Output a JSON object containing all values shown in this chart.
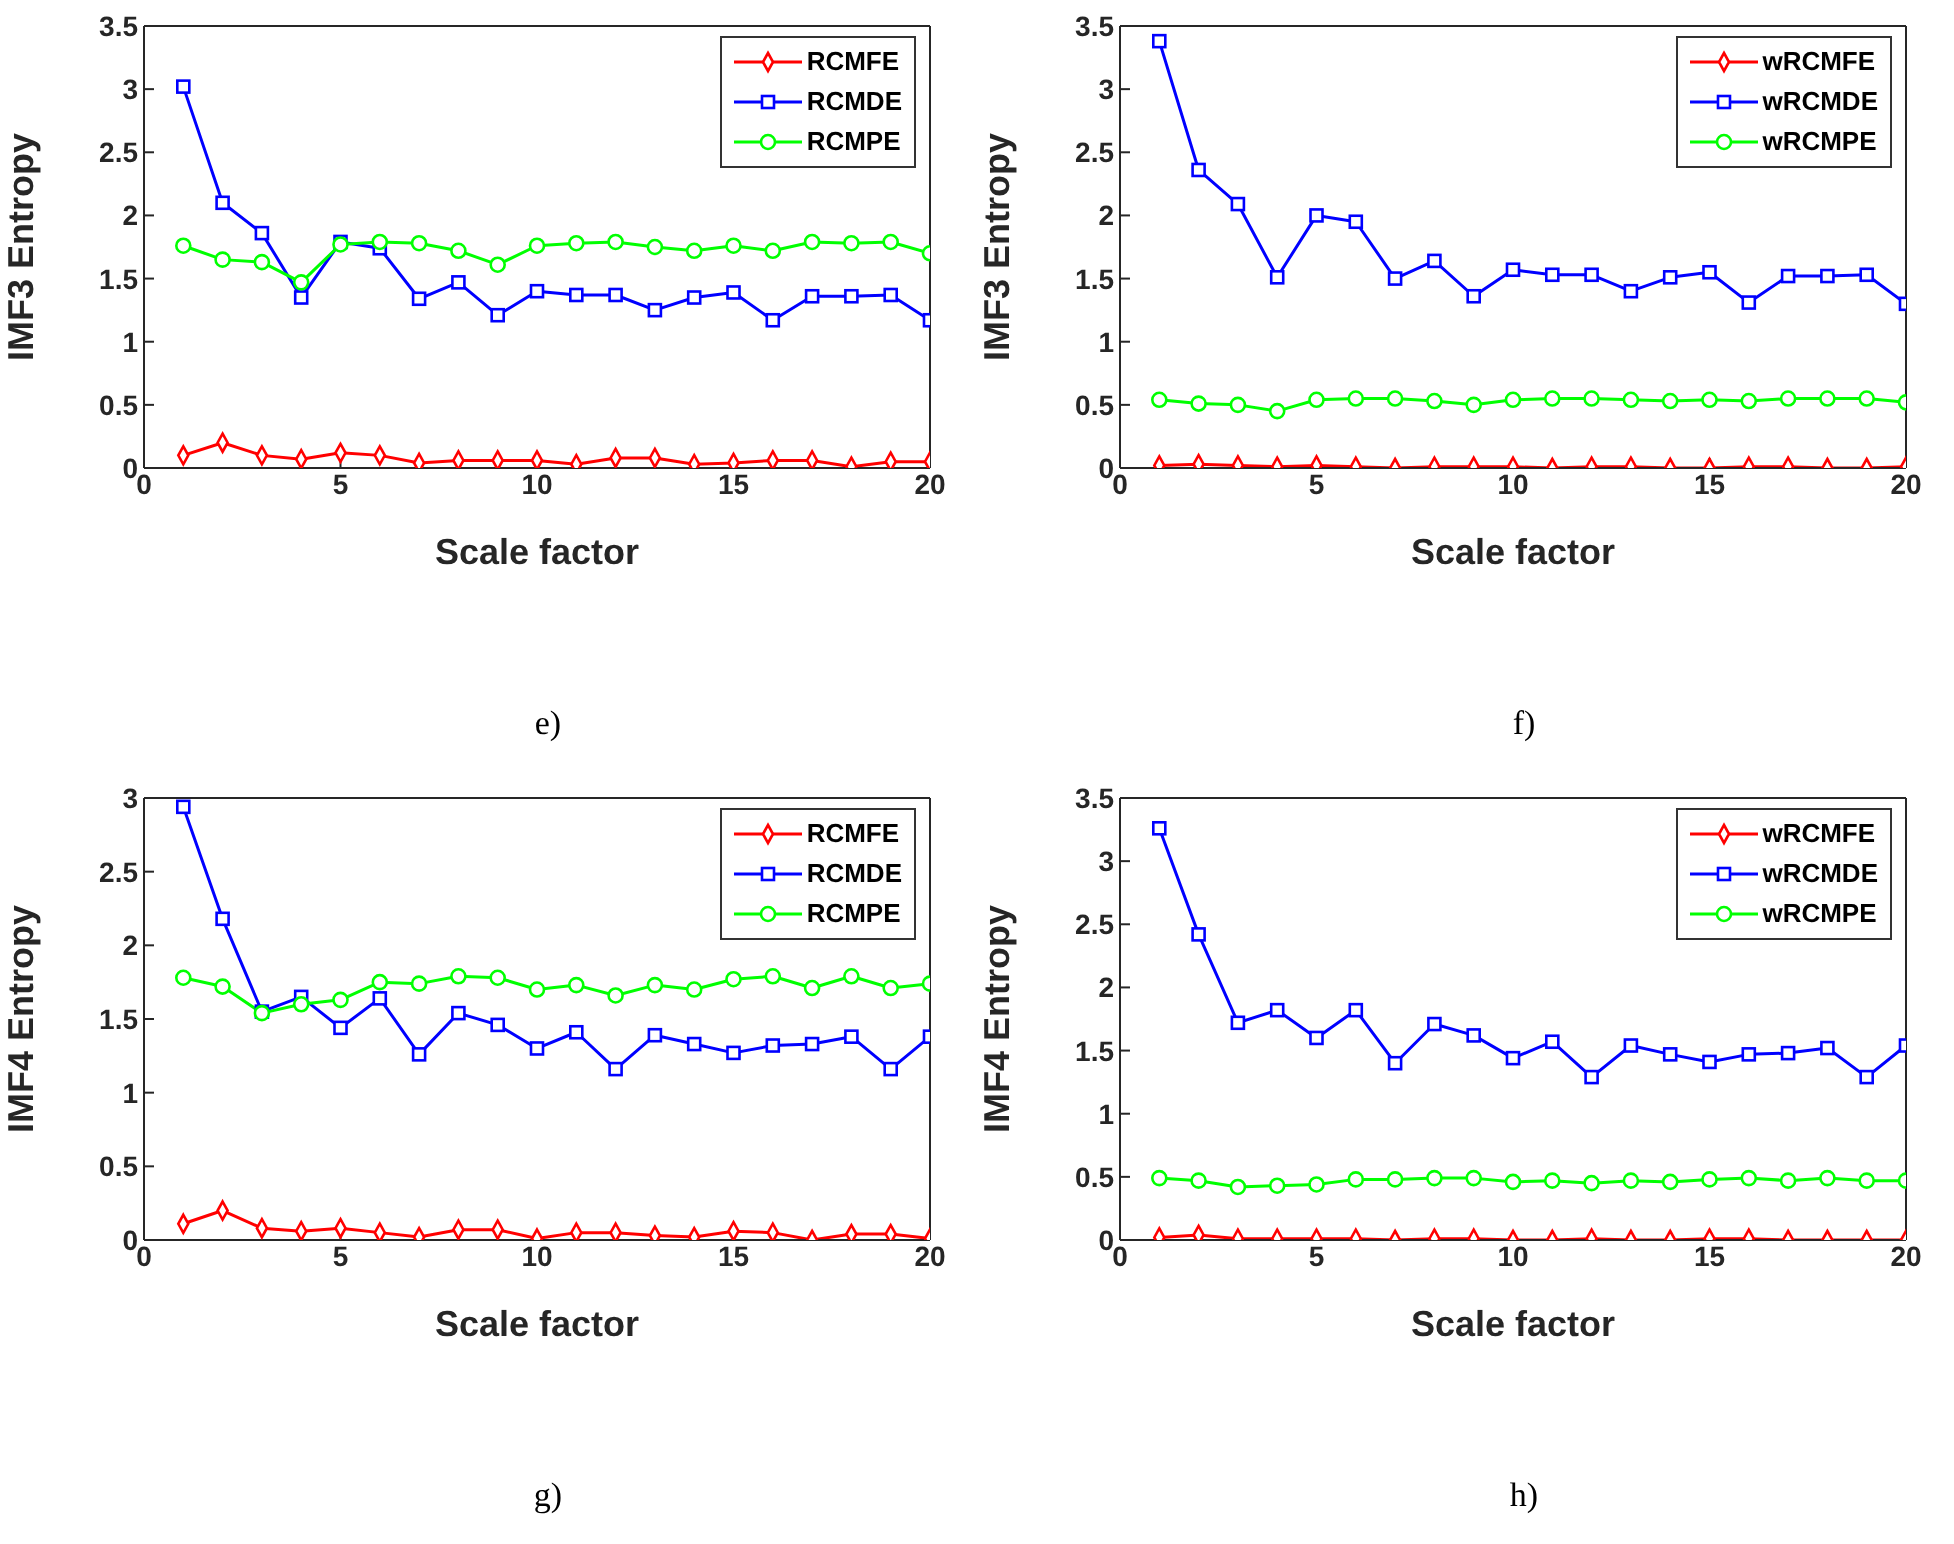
{
  "chart_data": [
    {
      "type": "line",
      "xlabel": "Scale factor",
      "ylabel": "IMF3 Entropy",
      "annotations": [
        "e)"
      ],
      "x": [
        1,
        2,
        3,
        4,
        5,
        6,
        7,
        8,
        9,
        10,
        11,
        12,
        13,
        14,
        15,
        16,
        17,
        18,
        19,
        20
      ],
      "xlim": [
        0,
        20
      ],
      "xticks": [
        0,
        5,
        10,
        15,
        20
      ],
      "ylim": [
        0,
        3.5
      ],
      "yticks": [
        0,
        0.5,
        1,
        1.5,
        2,
        2.5,
        3,
        3.5
      ],
      "legend": "top right",
      "grid": false,
      "line_style": "solid",
      "series": [
        {
          "name": "RCMFE",
          "color": "#ff0000",
          "marker": "diamond",
          "values": [
            0.1,
            0.2,
            0.1,
            0.07,
            0.12,
            0.1,
            0.04,
            0.06,
            0.06,
            0.06,
            0.03,
            0.08,
            0.08,
            0.03,
            0.04,
            0.06,
            0.06,
            0.01,
            0.05,
            0.05
          ]
        },
        {
          "name": "RCMDE",
          "color": "#0000ff",
          "marker": "square",
          "values": [
            3.02,
            2.1,
            1.86,
            1.35,
            1.79,
            1.74,
            1.34,
            1.47,
            1.21,
            1.4,
            1.37,
            1.37,
            1.25,
            1.35,
            1.39,
            1.17,
            1.36,
            1.36,
            1.37,
            1.17
          ]
        },
        {
          "name": "RCMPE",
          "color": "#00ff00",
          "marker": "circle",
          "values": [
            1.76,
            1.65,
            1.63,
            1.47,
            1.77,
            1.79,
            1.78,
            1.72,
            1.61,
            1.76,
            1.78,
            1.79,
            1.75,
            1.72,
            1.76,
            1.72,
            1.79,
            1.78,
            1.79,
            1.7
          ]
        }
      ]
    },
    {
      "type": "line",
      "xlabel": "Scale factor",
      "ylabel": "IMF3 Entropy",
      "annotations": [
        "f)"
      ],
      "x": [
        1,
        2,
        3,
        4,
        5,
        6,
        7,
        8,
        9,
        10,
        11,
        12,
        13,
        14,
        15,
        16,
        17,
        18,
        19,
        20
      ],
      "xlim": [
        0,
        20
      ],
      "xticks": [
        0,
        5,
        10,
        15,
        20
      ],
      "ylim": [
        0,
        3.5
      ],
      "yticks": [
        0,
        0.5,
        1,
        1.5,
        2,
        2.5,
        3,
        3.5
      ],
      "legend": "top right",
      "grid": false,
      "line_style": "solid",
      "series": [
        {
          "name": "wRCMFE",
          "color": "#ff0000",
          "marker": "diamond",
          "values": [
            0.02,
            0.03,
            0.02,
            0.01,
            0.02,
            0.01,
            0.0,
            0.01,
            0.01,
            0.01,
            0.0,
            0.01,
            0.01,
            0.0,
            0.0,
            0.01,
            0.01,
            0.0,
            0.0,
            0.01
          ]
        },
        {
          "name": "wRCMDE",
          "color": "#0000ff",
          "marker": "square",
          "values": [
            3.38,
            2.36,
            2.09,
            1.51,
            2.0,
            1.95,
            1.5,
            1.64,
            1.36,
            1.57,
            1.53,
            1.53,
            1.4,
            1.51,
            1.55,
            1.31,
            1.52,
            1.52,
            1.53,
            1.3
          ]
        },
        {
          "name": "wRCMPE",
          "color": "#00ff00",
          "marker": "circle",
          "values": [
            0.54,
            0.51,
            0.5,
            0.45,
            0.54,
            0.55,
            0.55,
            0.53,
            0.5,
            0.54,
            0.55,
            0.55,
            0.54,
            0.53,
            0.54,
            0.53,
            0.55,
            0.55,
            0.55,
            0.52
          ]
        }
      ]
    },
    {
      "type": "line",
      "xlabel": "Scale factor",
      "ylabel": "IMF4 Entropy",
      "annotations": [
        "g)"
      ],
      "x": [
        1,
        2,
        3,
        4,
        5,
        6,
        7,
        8,
        9,
        10,
        11,
        12,
        13,
        14,
        15,
        16,
        17,
        18,
        19,
        20
      ],
      "xlim": [
        0,
        20
      ],
      "xticks": [
        0,
        5,
        10,
        15,
        20
      ],
      "ylim": [
        0,
        3
      ],
      "yticks": [
        0,
        0.5,
        1,
        1.5,
        2,
        2.5,
        3
      ],
      "legend": "top right",
      "grid": false,
      "line_style": "solid",
      "series": [
        {
          "name": "RCMFE",
          "color": "#ff0000",
          "marker": "diamond",
          "values": [
            0.11,
            0.2,
            0.08,
            0.06,
            0.08,
            0.05,
            0.02,
            0.07,
            0.07,
            0.01,
            0.05,
            0.05,
            0.03,
            0.02,
            0.06,
            0.05,
            0.0,
            0.04,
            0.04,
            0.01
          ]
        },
        {
          "name": "RCMDE",
          "color": "#0000ff",
          "marker": "square",
          "values": [
            2.94,
            2.18,
            1.55,
            1.65,
            1.44,
            1.64,
            1.26,
            1.54,
            1.46,
            1.3,
            1.41,
            1.16,
            1.39,
            1.33,
            1.27,
            1.32,
            1.33,
            1.38,
            1.16,
            1.38
          ]
        },
        {
          "name": "RCMPE",
          "color": "#00ff00",
          "marker": "circle",
          "values": [
            1.78,
            1.72,
            1.54,
            1.6,
            1.63,
            1.75,
            1.74,
            1.79,
            1.78,
            1.7,
            1.73,
            1.66,
            1.73,
            1.7,
            1.77,
            1.79,
            1.71,
            1.79,
            1.71,
            1.74
          ]
        }
      ]
    },
    {
      "type": "line",
      "xlabel": "Scale factor",
      "ylabel": "IMF4 Entropy",
      "annotations": [
        "h)"
      ],
      "x": [
        1,
        2,
        3,
        4,
        5,
        6,
        7,
        8,
        9,
        10,
        11,
        12,
        13,
        14,
        15,
        16,
        17,
        18,
        19,
        20
      ],
      "xlim": [
        0,
        20
      ],
      "xticks": [
        0,
        5,
        10,
        15,
        20
      ],
      "ylim": [
        0,
        3.5
      ],
      "yticks": [
        0,
        0.5,
        1,
        1.5,
        2,
        2.5,
        3,
        3.5
      ],
      "legend": "top right",
      "grid": false,
      "line_style": "solid",
      "series": [
        {
          "name": "wRCMFE",
          "color": "#ff0000",
          "marker": "diamond",
          "values": [
            0.02,
            0.04,
            0.01,
            0.01,
            0.01,
            0.01,
            0.0,
            0.01,
            0.01,
            0.0,
            0.0,
            0.01,
            0.0,
            0.0,
            0.01,
            0.01,
            0.0,
            0.0,
            0.0,
            0.0
          ]
        },
        {
          "name": "wRCMDE",
          "color": "#0000ff",
          "marker": "square",
          "values": [
            3.26,
            2.42,
            1.72,
            1.82,
            1.6,
            1.82,
            1.4,
            1.71,
            1.62,
            1.44,
            1.57,
            1.29,
            1.54,
            1.47,
            1.41,
            1.47,
            1.48,
            1.52,
            1.29,
            1.54
          ]
        },
        {
          "name": "wRCMPE",
          "color": "#00ff00",
          "marker": "circle",
          "values": [
            0.49,
            0.47,
            0.42,
            0.43,
            0.44,
            0.48,
            0.48,
            0.49,
            0.49,
            0.46,
            0.47,
            0.45,
            0.47,
            0.46,
            0.48,
            0.49,
            0.47,
            0.49,
            0.47,
            0.47
          ]
        }
      ]
    }
  ]
}
